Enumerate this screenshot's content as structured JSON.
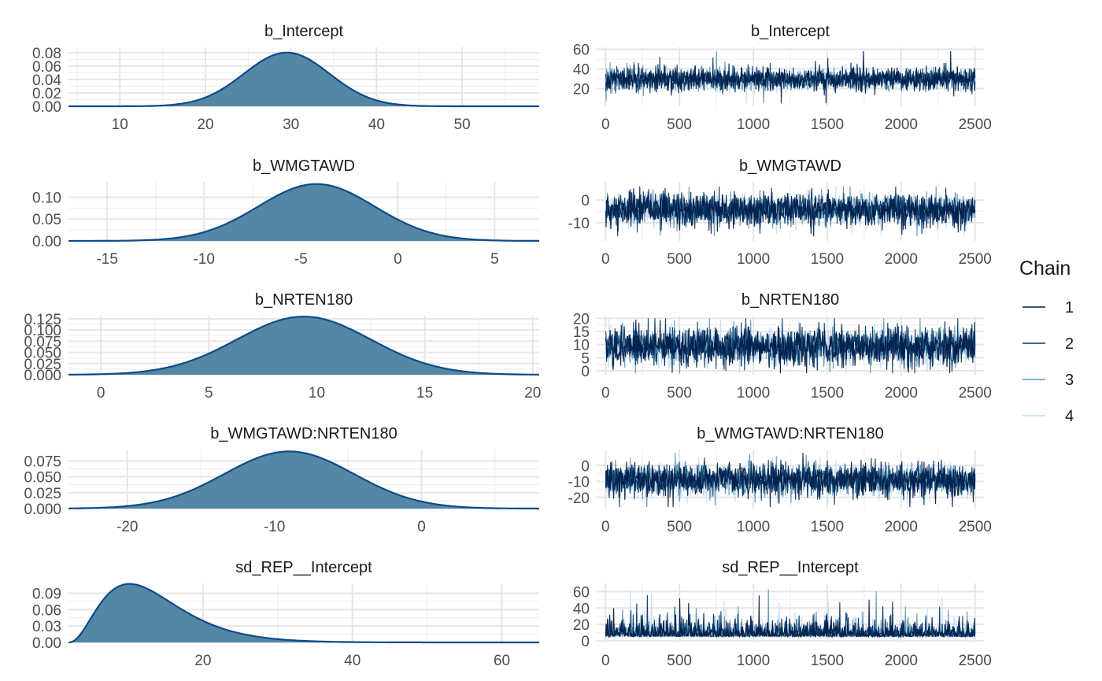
{
  "colors": {
    "density_fill": "#5587a5",
    "density_line": "#0f4a8a",
    "grid_major": "#e6e6e6",
    "grid_minor": "#f0f0f0",
    "chains": [
      "#011f4b",
      "#03396c",
      "#6497b1",
      "#c6dbef"
    ]
  },
  "legend": {
    "title": "Chain",
    "position": "right",
    "labels": [
      "1",
      "2",
      "3",
      "4"
    ]
  },
  "chart_data": [
    {
      "type": "area",
      "title": "b_Intercept",
      "xlim": [
        4,
        59
      ],
      "ylim": [
        0,
        0.088
      ],
      "xticks": [
        10,
        20,
        30,
        40,
        50
      ],
      "yticks": [
        0,
        0.02,
        0.04,
        0.06,
        0.08
      ],
      "ytick_labels": [
        "0.00",
        "0.02",
        "0.04",
        "0.06",
        "0.08"
      ],
      "grid": true,
      "density": {
        "mean": 29.5,
        "sd": 5.0,
        "peak": 0.08
      }
    },
    {
      "type": "line",
      "title": "b_Intercept",
      "xlim": [
        -60,
        2560
      ],
      "ylim": [
        2,
        62
      ],
      "xticks": [
        0,
        500,
        1000,
        1500,
        2000,
        2500
      ],
      "yticks": [
        20,
        40,
        60
      ],
      "ytick_labels": [
        "20",
        "40",
        "60"
      ],
      "grid": true,
      "iterations": [
        1,
        2500
      ],
      "trace": {
        "center": 29.5,
        "spread": 5.0,
        "max": 58,
        "min": 5
      }
    },
    {
      "type": "area",
      "title": "b_WMGTAWD",
      "xlim": [
        -17,
        7.3
      ],
      "ylim": [
        0,
        0.135
      ],
      "xticks": [
        -15,
        -10,
        -5,
        0,
        5
      ],
      "yticks": [
        0,
        0.05,
        0.1
      ],
      "ytick_labels": [
        "0.00",
        "0.05",
        "0.10"
      ],
      "grid": true,
      "density": {
        "mean": -4.2,
        "sd": 3.0,
        "peak": 0.13
      }
    },
    {
      "type": "line",
      "title": "b_WMGTAWD",
      "xlim": [
        -60,
        2560
      ],
      "ylim": [
        -18,
        8
      ],
      "xticks": [
        0,
        500,
        1000,
        1500,
        2000,
        2500
      ],
      "yticks": [
        -10,
        0
      ],
      "ytick_labels": [
        "-10",
        "0"
      ],
      "grid": true,
      "iterations": [
        1,
        2500
      ],
      "trace": {
        "center": -4.2,
        "spread": 3.0,
        "max": 6,
        "min": -16
      }
    },
    {
      "type": "area",
      "title": "b_NRTEN180",
      "xlim": [
        -1.5,
        20.3
      ],
      "ylim": [
        0,
        0.132
      ],
      "xticks": [
        0,
        5,
        10,
        15,
        20
      ],
      "yticks": [
        0,
        0.025,
        0.05,
        0.075,
        0.1,
        0.125
      ],
      "ytick_labels": [
        "0.000",
        "0.025",
        "0.050",
        "0.075",
        "0.100",
        "0.125"
      ],
      "grid": true,
      "density": {
        "mean": 9.4,
        "sd": 3.1,
        "peak": 0.13
      }
    },
    {
      "type": "line",
      "title": "b_NRTEN180",
      "xlim": [
        -60,
        2560
      ],
      "ylim": [
        -1.5,
        21
      ],
      "xticks": [
        0,
        500,
        1000,
        1500,
        2000,
        2500
      ],
      "yticks": [
        0,
        5,
        10,
        15,
        20
      ],
      "ytick_labels": [
        "0",
        "5",
        "10",
        "15",
        "20"
      ],
      "grid": true,
      "iterations": [
        1,
        2500
      ],
      "trace": {
        "center": 9.4,
        "spread": 3.1,
        "max": 20,
        "min": -1
      }
    },
    {
      "type": "area",
      "title": "b_WMGTAWD:NRTEN180",
      "xlim": [
        -24,
        8
      ],
      "ylim": [
        0,
        0.093
      ],
      "xticks": [
        -20,
        -10,
        0
      ],
      "yticks": [
        0,
        0.025,
        0.05,
        0.075
      ],
      "ytick_labels": [
        "0.000",
        "0.025",
        "0.050",
        "0.075"
      ],
      "grid": true,
      "density": {
        "mean": -9.0,
        "sd": 4.4,
        "peak": 0.09
      }
    },
    {
      "type": "line",
      "title": "b_WMGTAWD:NRTEN180",
      "xlim": [
        -60,
        2560
      ],
      "ylim": [
        -27,
        10
      ],
      "xticks": [
        0,
        500,
        1000,
        1500,
        2000,
        2500
      ],
      "yticks": [
        -20,
        -10,
        0
      ],
      "ytick_labels": [
        "-20",
        "-10",
        "0"
      ],
      "grid": true,
      "iterations": [
        1,
        2500
      ],
      "trace": {
        "center": -9.0,
        "spread": 4.4,
        "max": 8,
        "min": -26
      }
    },
    {
      "type": "area",
      "title": "sd_REP__Intercept",
      "xlim": [
        2,
        65
      ],
      "ylim": [
        0,
        0.108
      ],
      "xticks": [
        20,
        40,
        60
      ],
      "yticks": [
        0,
        0.03,
        0.06,
        0.09
      ],
      "ytick_labels": [
        "0.00",
        "0.03",
        "0.06",
        "0.09"
      ],
      "grid": true,
      "density": {
        "skewed": true,
        "mode": 9,
        "peak": 0.107
      }
    },
    {
      "type": "line",
      "title": "sd_REP__Intercept",
      "xlim": [
        -60,
        2560
      ],
      "ylim": [
        -2,
        70
      ],
      "xticks": [
        0,
        500,
        1000,
        1500,
        2000,
        2500
      ],
      "yticks": [
        0,
        20,
        40,
        60
      ],
      "ytick_labels": [
        "0",
        "20",
        "40",
        "60"
      ],
      "grid": true,
      "iterations": [
        1,
        2500
      ],
      "trace": {
        "skewed": true,
        "center": 12,
        "spread": 6,
        "max": 65,
        "min": 2
      }
    }
  ]
}
